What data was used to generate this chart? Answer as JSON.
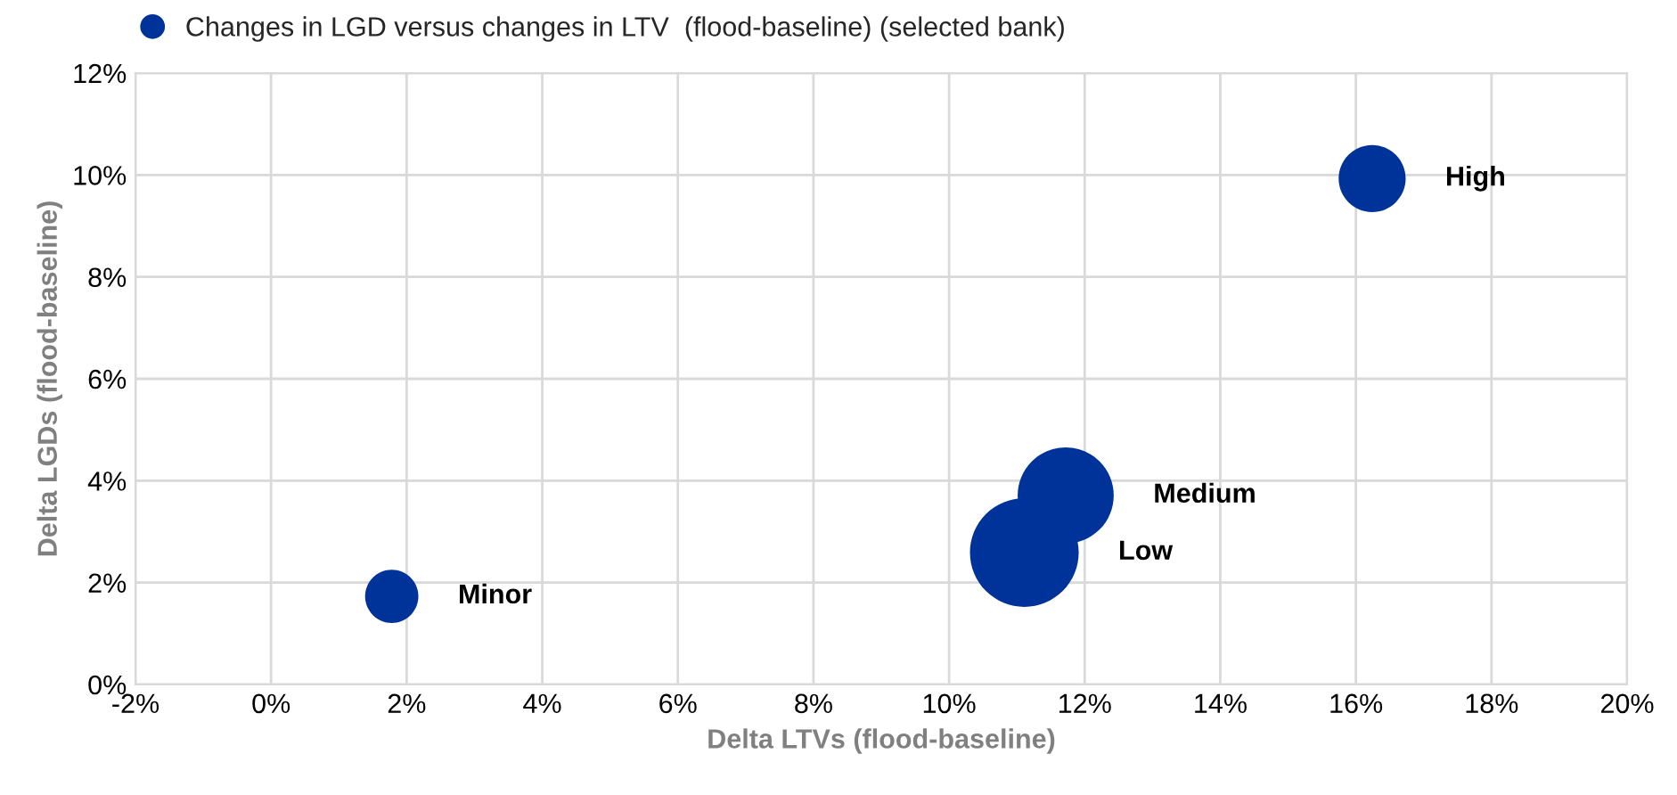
{
  "chart_data": {
    "type": "bubble",
    "xlabel": "Delta LTVs (flood-baseline)",
    "ylabel": "Delta LGDs (flood-baseline)",
    "series": [
      {
        "name": "Changes in LGD versus changes in LTV  (flood-baseline) (selected bank)",
        "color": "#003399",
        "x": [
          1.78,
          11.11,
          11.72,
          16.24
        ],
        "values": [
          1.73,
          2.59,
          3.71,
          9.93
        ],
        "sizes": [
          0.24,
          1,
          0.78,
          0.38
        ]
      }
    ],
    "annotations": [
      "Minor",
      "Low",
      "Medium",
      "High"
    ],
    "xlim": [
      -2,
      20
    ],
    "ylim": [
      0,
      12
    ],
    "xticks": [
      {
        "value": -2,
        "label": "-2%"
      },
      {
        "value": 0,
        "label": "0%"
      },
      {
        "value": 2,
        "label": "2%"
      },
      {
        "value": 4,
        "label": "4%"
      },
      {
        "value": 6,
        "label": "6%"
      },
      {
        "value": 8,
        "label": "8%"
      },
      {
        "value": 10,
        "label": "10%"
      },
      {
        "value": 12,
        "label": "12%"
      },
      {
        "value": 14,
        "label": "14%"
      },
      {
        "value": 16,
        "label": "16%"
      },
      {
        "value": 18,
        "label": "18%"
      },
      {
        "value": 20,
        "label": "20%"
      }
    ],
    "yticks": [
      {
        "value": 0,
        "label": "0%"
      },
      {
        "value": 2,
        "label": "2%"
      },
      {
        "value": 4,
        "label": "4%"
      },
      {
        "value": 6,
        "label": "6%"
      },
      {
        "value": 8,
        "label": "8%"
      },
      {
        "value": 10,
        "label": "10%"
      },
      {
        "value": 12,
        "label": "12%"
      }
    ],
    "grid": true,
    "legend": "top left",
    "marker": "circle"
  }
}
